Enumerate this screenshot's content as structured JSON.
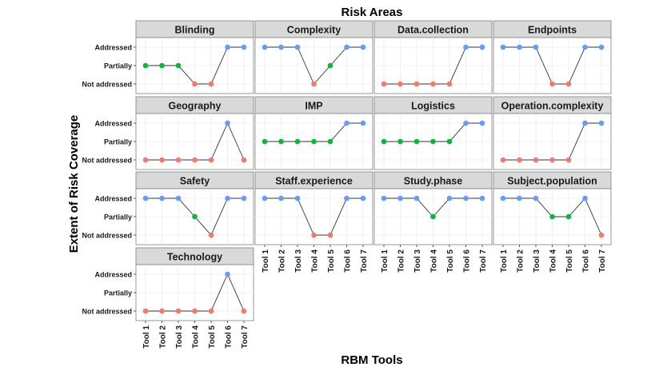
{
  "chart_data": {
    "type": "line",
    "title": "Risk Areas",
    "xlabel": "RBM Tools",
    "ylabel": "Extent of Risk Coverage",
    "categories": [
      "Tool 1",
      "Tool 2",
      "Tool 3",
      "Tool 4",
      "Tool 5",
      "Tool 6",
      "Tool 7"
    ],
    "levels": [
      "Not addressed",
      "Partially",
      "Addressed"
    ],
    "level_colors": {
      "Addressed": "#619CFF",
      "Partially": "#00BA38",
      "Not addressed": "#F8766D"
    },
    "panel_background": "#ffffff",
    "strip_background": "#d9d9d9",
    "grid_color": "#ebebeb",
    "facets": [
      {
        "name": "Blinding",
        "values": [
          "Partially",
          "Partially",
          "Partially",
          "Not addressed",
          "Not addressed",
          "Addressed",
          "Addressed"
        ]
      },
      {
        "name": "Complexity",
        "values": [
          "Addressed",
          "Addressed",
          "Addressed",
          "Not addressed",
          "Partially",
          "Addressed",
          "Addressed"
        ]
      },
      {
        "name": "Data.collection",
        "values": [
          "Not addressed",
          "Not addressed",
          "Not addressed",
          "Not addressed",
          "Not addressed",
          "Addressed",
          "Addressed"
        ]
      },
      {
        "name": "Endpoints",
        "values": [
          "Addressed",
          "Addressed",
          "Addressed",
          "Not addressed",
          "Not addressed",
          "Addressed",
          "Addressed"
        ]
      },
      {
        "name": "Geography",
        "values": [
          "Not addressed",
          "Not addressed",
          "Not addressed",
          "Not addressed",
          "Not addressed",
          "Addressed",
          "Not addressed"
        ]
      },
      {
        "name": "IMP",
        "values": [
          "Partially",
          "Partially",
          "Partially",
          "Partially",
          "Partially",
          "Addressed",
          "Addressed"
        ]
      },
      {
        "name": "Logistics",
        "values": [
          "Partially",
          "Partially",
          "Partially",
          "Partially",
          "Partially",
          "Addressed",
          "Addressed"
        ]
      },
      {
        "name": "Operation.complexity",
        "values": [
          "Not addressed",
          "Not addressed",
          "Not addressed",
          "Not addressed",
          "Not addressed",
          "Addressed",
          "Addressed"
        ]
      },
      {
        "name": "Safety",
        "values": [
          "Addressed",
          "Addressed",
          "Addressed",
          "Partially",
          "Not addressed",
          "Addressed",
          "Addressed"
        ]
      },
      {
        "name": "Staff.experience",
        "values": [
          "Addressed",
          "Addressed",
          "Addressed",
          "Not addressed",
          "Not addressed",
          "Addressed",
          "Addressed"
        ]
      },
      {
        "name": "Study.phase",
        "values": [
          "Addressed",
          "Addressed",
          "Addressed",
          "Partially",
          "Addressed",
          "Addressed",
          "Addressed"
        ]
      },
      {
        "name": "Subject.population",
        "values": [
          "Addressed",
          "Addressed",
          "Addressed",
          "Partially",
          "Partially",
          "Addressed",
          "Not addressed"
        ]
      },
      {
        "name": "Technology",
        "values": [
          "Not addressed",
          "Not addressed",
          "Not addressed",
          "Not addressed",
          "Not addressed",
          "Addressed",
          "Not addressed"
        ]
      }
    ]
  }
}
